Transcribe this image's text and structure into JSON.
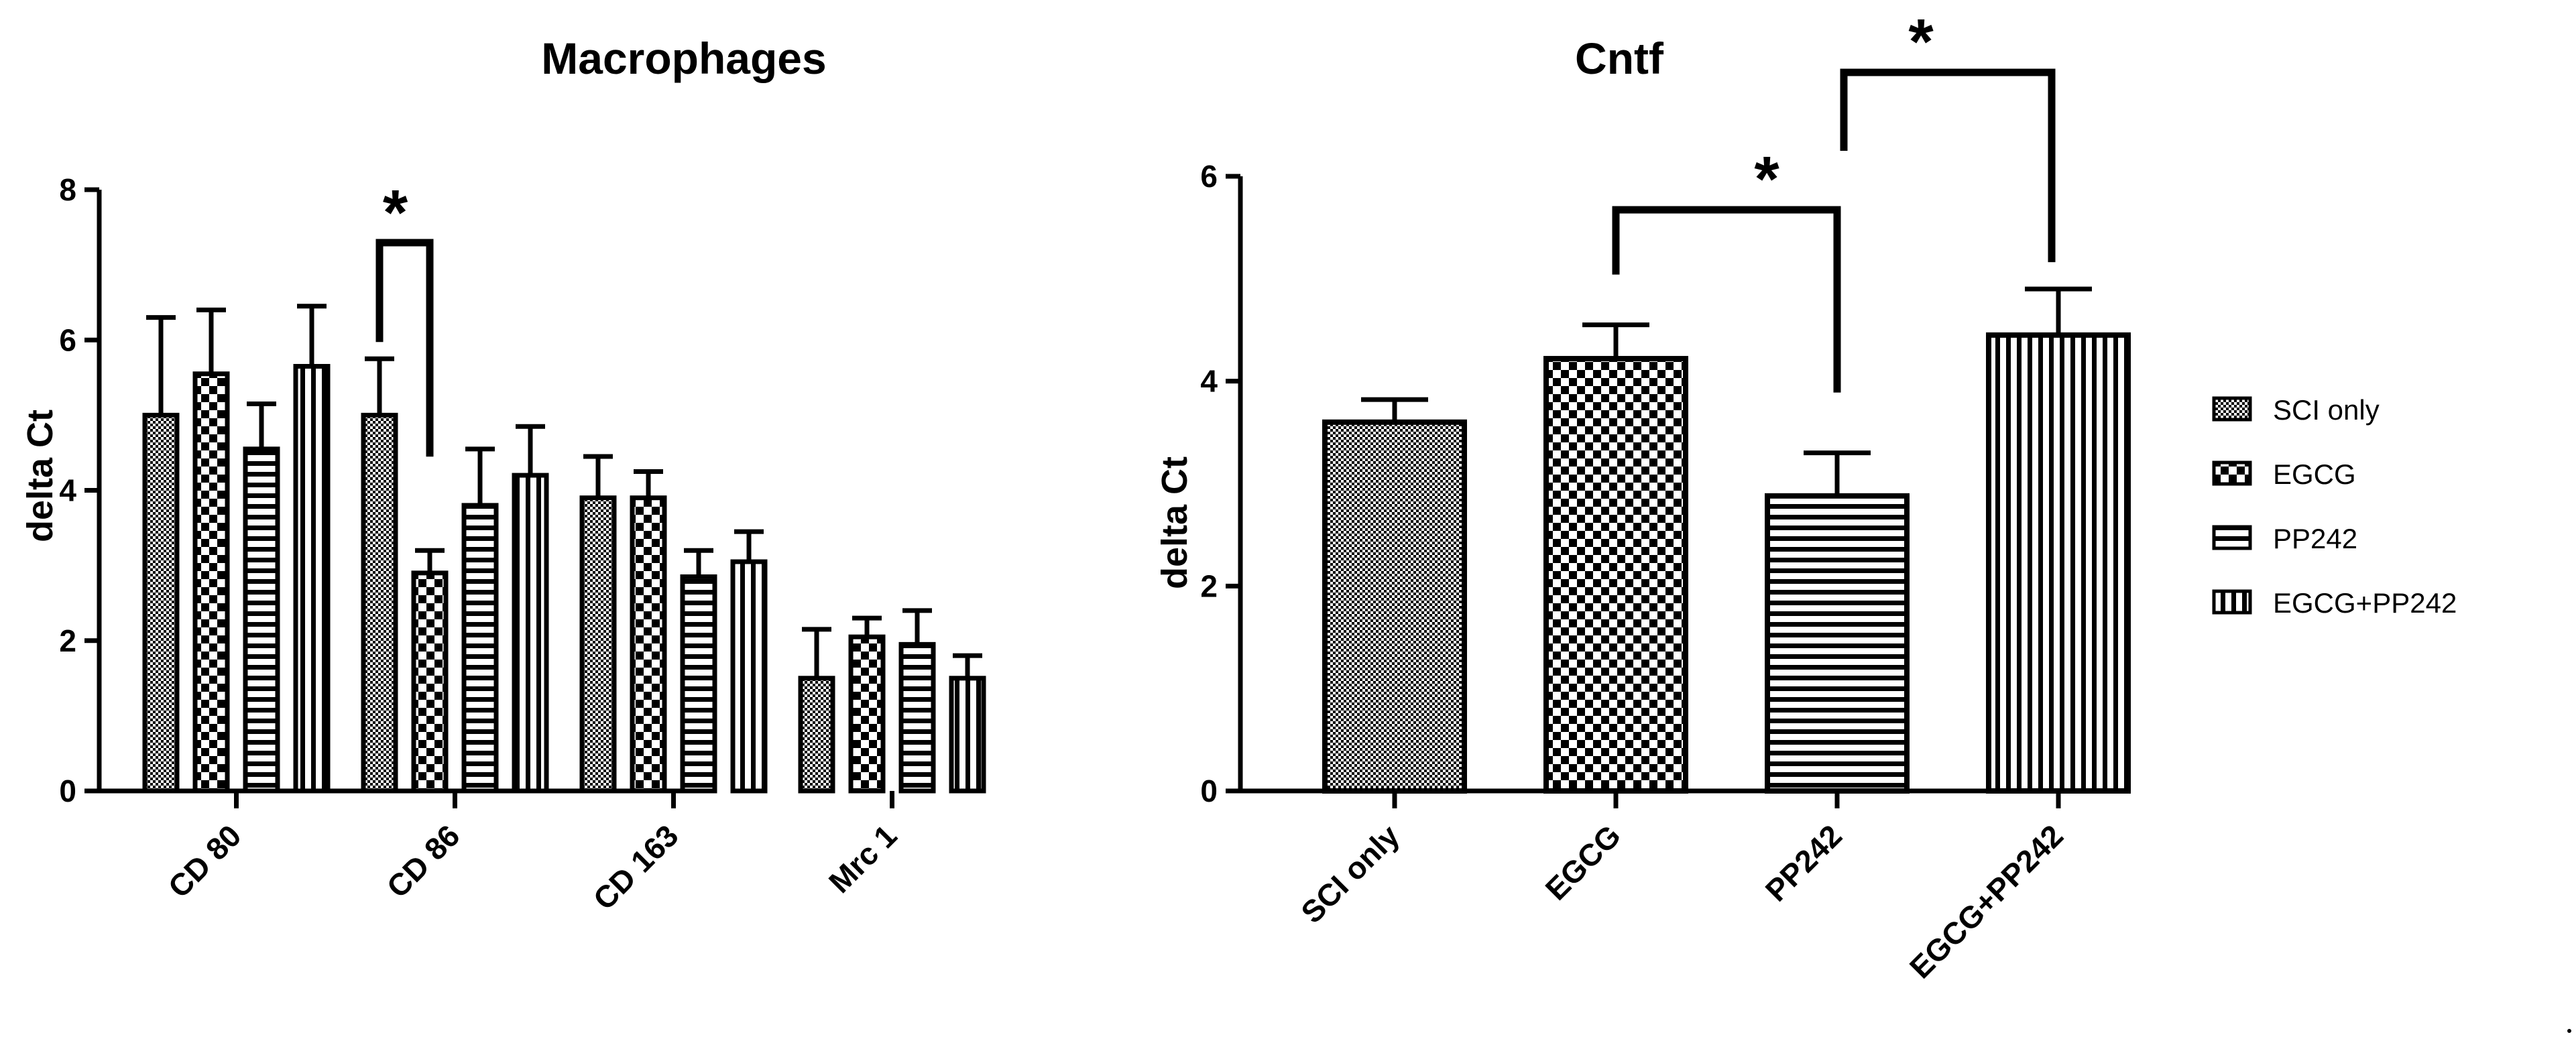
{
  "chart_data": [
    {
      "type": "bar",
      "title": "Macrophages",
      "xlabel": "",
      "ylabel": "delta Ct",
      "ylim": [
        0,
        8
      ],
      "yticks": [
        0,
        2,
        4,
        6,
        8
      ],
      "grid": false,
      "categories": [
        "CD 80",
        "CD 86",
        "CD 163",
        "Mrc 1"
      ],
      "series": [
        {
          "name": "SCI only",
          "values": [
            5.0,
            5.0,
            3.9,
            1.5
          ],
          "errors": [
            1.3,
            0.75,
            0.55,
            0.65
          ]
        },
        {
          "name": "EGCG",
          "values": [
            5.55,
            2.9,
            3.9,
            2.05
          ],
          "errors": [
            0.85,
            0.3,
            0.35,
            0.25
          ]
        },
        {
          "name": "PP242",
          "values": [
            4.55,
            3.8,
            2.85,
            1.95
          ],
          "errors": [
            0.6,
            0.75,
            0.35,
            0.45
          ]
        },
        {
          "name": "EGCG+PP242",
          "values": [
            5.65,
            4.2,
            3.05,
            1.5
          ],
          "errors": [
            0.8,
            0.65,
            0.4,
            0.3
          ]
        }
      ],
      "annotations": [
        {
          "label": "*",
          "between": [
            "CD 86: SCI only",
            "CD 86: EGCG"
          ]
        }
      ]
    },
    {
      "type": "bar",
      "title": "Cntf",
      "xlabel": "",
      "ylabel": "delta Ct",
      "ylim": [
        0,
        6
      ],
      "yticks": [
        0,
        2,
        4,
        6
      ],
      "grid": false,
      "categories": [
        "SCI only",
        "EGCG",
        "PP242",
        "EGCG+PP242"
      ],
      "values": [
        3.6,
        4.22,
        2.88,
        4.45
      ],
      "errors": [
        0.22,
        0.33,
        0.42,
        0.45
      ],
      "annotations": [
        {
          "label": "*",
          "between": [
            "EGCG",
            "PP242"
          ]
        },
        {
          "label": "*",
          "between": [
            "PP242",
            "EGCG+PP242"
          ]
        }
      ],
      "legend": {
        "placement": "right",
        "entries": [
          "SCI only",
          "EGCG",
          "PP242",
          "EGCG+PP242"
        ]
      }
    }
  ]
}
